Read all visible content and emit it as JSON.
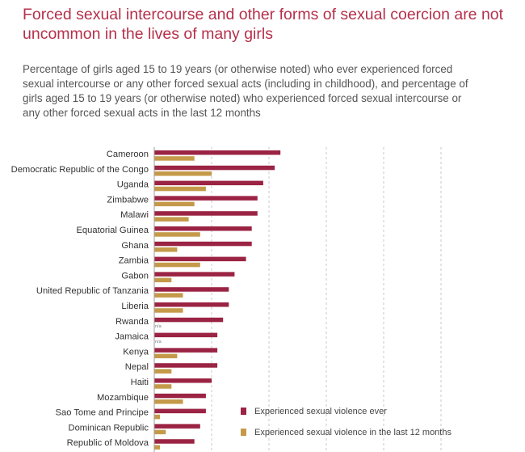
{
  "header": {
    "title": "Forced sexual intercourse and other forms of sexual coercion are not uncommon in the lives of many girls",
    "subtitle": "Percentage of girls aged 15 to 19 years (or otherwise noted) who ever experienced forced sexual intercourse or any other forced sexual acts (including in childhood), and percentage of girls aged 15 to 19 years (or otherwise noted) who experienced forced sexual intercourse or any other forced sexual acts in the last 12 months"
  },
  "chart_data": {
    "type": "bar",
    "orientation": "horizontal",
    "categories": [
      "Cameroon",
      "Democratic Republic of the Congo",
      "Uganda",
      "Zimbabwe",
      "Malawi",
      "Equatorial Guinea",
      "Ghana",
      "Zambia",
      "Gabon",
      "United Republic of Tanzania",
      "Liberia",
      "Rwanda",
      "Jamaica",
      "Kenya",
      "Nepal",
      "Haiti",
      "Mozambique",
      "Sao Tome and Principe",
      "Dominican Republic",
      "Republic of Moldova"
    ],
    "series": [
      {
        "name": "Experienced sexual violence ever",
        "color": "#9b2343",
        "values": [
          22,
          21,
          19,
          18,
          18,
          17,
          17,
          16,
          14,
          13,
          13,
          12,
          11,
          11,
          11,
          10,
          9,
          9,
          8,
          7
        ]
      },
      {
        "name": "Experienced sexual violence in the last 12 months",
        "color": "#c49a4a",
        "values": [
          7,
          10,
          9,
          7,
          6,
          8,
          4,
          8,
          3,
          5,
          5,
          null,
          null,
          4,
          3,
          3,
          5,
          1,
          2,
          1
        ]
      }
    ],
    "missing_label": "n/a",
    "xlim": [
      0,
      50
    ],
    "gridlines": [
      10,
      20,
      30,
      40,
      50
    ],
    "legend_position": "bottom-right"
  }
}
